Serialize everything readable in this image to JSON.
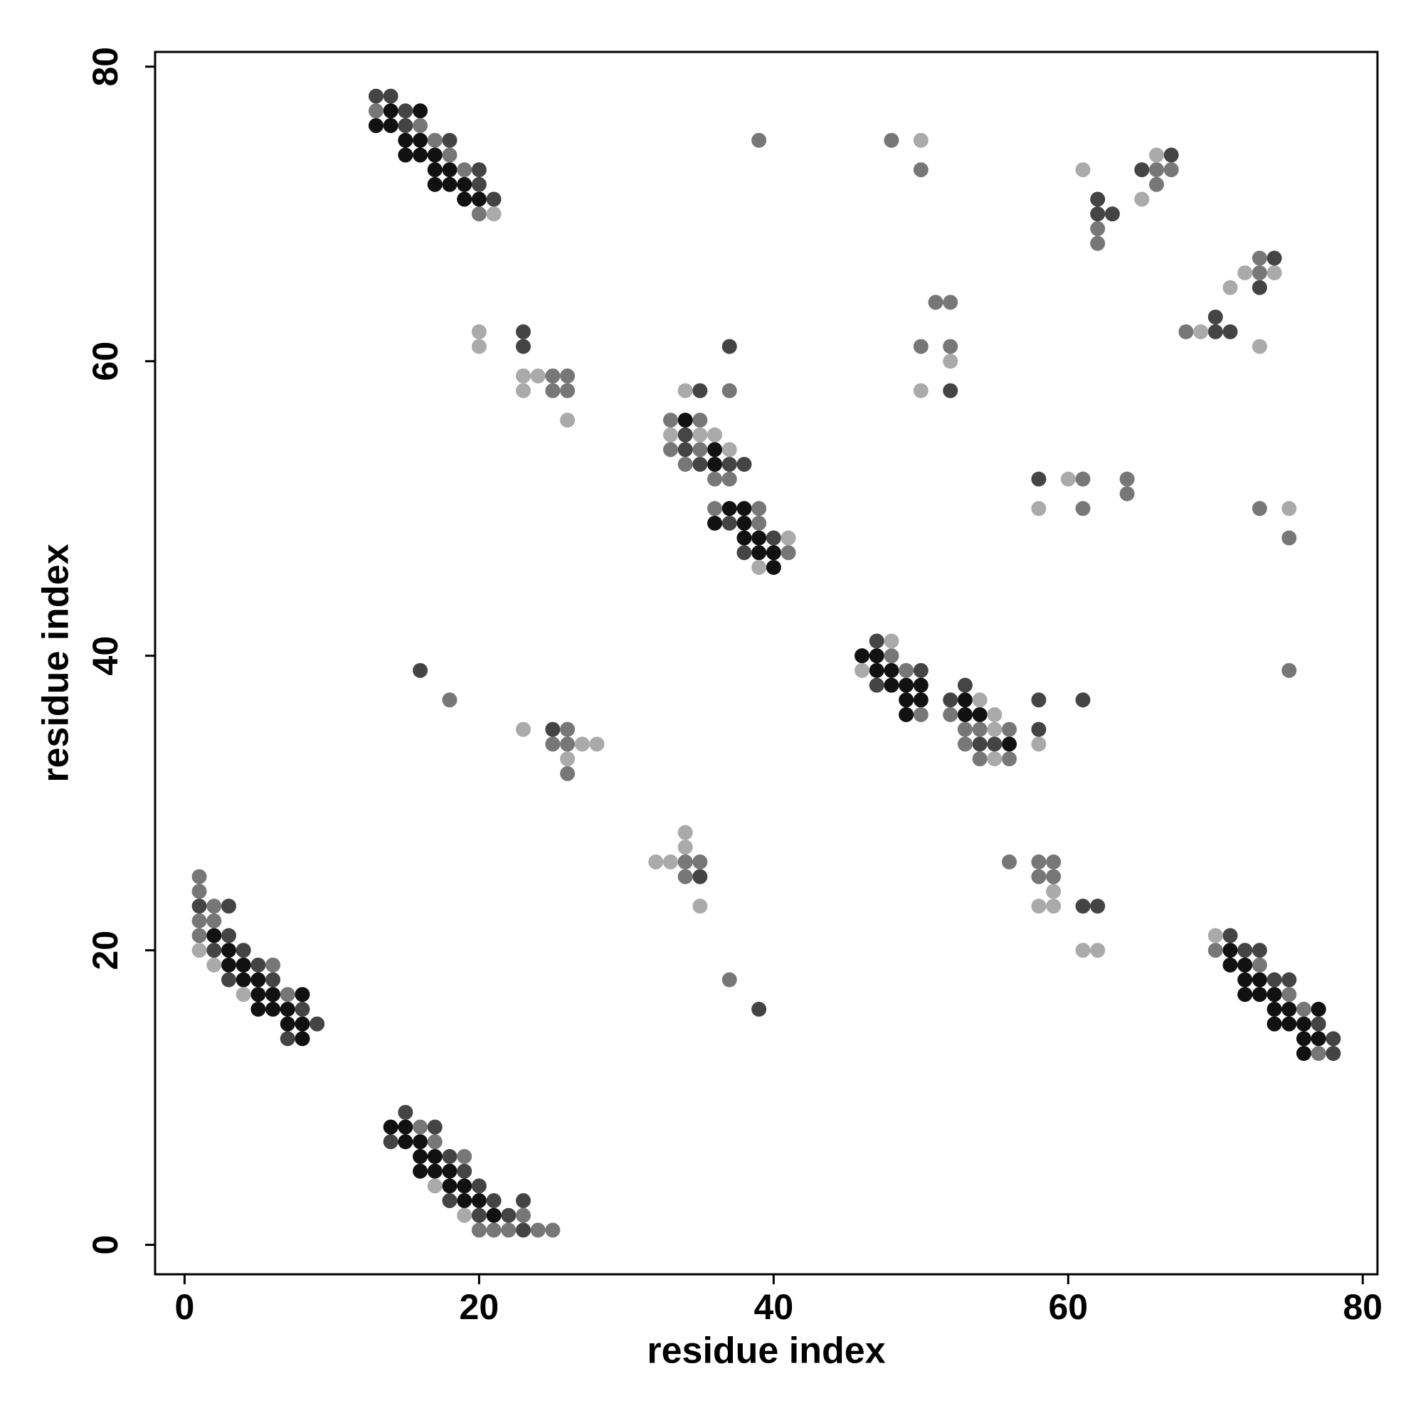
{
  "chart_data": {
    "type": "scatter",
    "xlabel": "residue index",
    "ylabel": "residue index",
    "xlim": [
      -2,
      81
    ],
    "ylim": [
      -2,
      81
    ],
    "xticks": [
      0,
      20,
      40,
      60,
      80
    ],
    "yticks": [
      0,
      20,
      40,
      60,
      80
    ],
    "series": [
      {
        "color": "#111111",
        "x": [
          14,
          16,
          13,
          14,
          15,
          16,
          15,
          16,
          17,
          17,
          18,
          17,
          18,
          19,
          19,
          20,
          34,
          36,
          36,
          37,
          38,
          36,
          38,
          38,
          39,
          39,
          40,
          40,
          46,
          47,
          47,
          48,
          48,
          49,
          50,
          49,
          50,
          53,
          49,
          53,
          54,
          56,
          2,
          3,
          3,
          4,
          4,
          5,
          5,
          6,
          8,
          5,
          6,
          7,
          7,
          8,
          8,
          14,
          15,
          15,
          16,
          16,
          17,
          16,
          17,
          18,
          18,
          19,
          19,
          20,
          21,
          71,
          71,
          72,
          72,
          73,
          72,
          73,
          74,
          74,
          75,
          77,
          74,
          75,
          76,
          76,
          77,
          76
        ],
        "y": [
          77,
          77,
          76,
          76,
          75,
          75,
          74,
          74,
          74,
          73,
          73,
          72,
          72,
          72,
          71,
          71,
          56,
          54,
          53,
          50,
          50,
          49,
          49,
          48,
          48,
          47,
          47,
          46,
          40,
          40,
          39,
          39,
          38,
          38,
          38,
          37,
          37,
          37,
          36,
          36,
          36,
          34,
          21,
          20,
          19,
          19,
          18,
          18,
          17,
          17,
          17,
          16,
          16,
          16,
          15,
          15,
          14,
          8,
          8,
          7,
          7,
          6,
          6,
          5,
          5,
          5,
          4,
          4,
          3,
          3,
          2,
          20,
          19,
          19,
          18,
          18,
          17,
          17,
          17,
          16,
          16,
          16,
          15,
          15,
          15,
          14,
          14,
          13
        ]
      },
      {
        "color": "#444444",
        "x": [
          13,
          14,
          15,
          15,
          18,
          20,
          20,
          21,
          62,
          62,
          63,
          65,
          67,
          74,
          73,
          70,
          70,
          71,
          52,
          23,
          23,
          37,
          35,
          34,
          34,
          35,
          37,
          38,
          37,
          40,
          38,
          58,
          47,
          50,
          47,
          53,
          52,
          58,
          61,
          58,
          54,
          55,
          16,
          25,
          35,
          61,
          62,
          39,
          1,
          3,
          3,
          2,
          4,
          5,
          3,
          6,
          8,
          9,
          7,
          15,
          17,
          14,
          18,
          19,
          20,
          18,
          21,
          23,
          20,
          22,
          23,
          71,
          72,
          73,
          74,
          75,
          77,
          78,
          78
        ],
        "y": [
          78,
          78,
          77,
          76,
          75,
          73,
          72,
          71,
          71,
          70,
          70,
          73,
          74,
          67,
          65,
          63,
          62,
          62,
          58,
          62,
          61,
          61,
          58,
          55,
          54,
          53,
          53,
          53,
          49,
          48,
          47,
          52,
          41,
          39,
          38,
          38,
          37,
          37,
          37,
          35,
          34,
          34,
          39,
          35,
          25,
          23,
          23,
          16,
          23,
          23,
          21,
          20,
          20,
          19,
          18,
          18,
          16,
          15,
          14,
          9,
          8,
          7,
          6,
          5,
          4,
          3,
          3,
          3,
          2,
          2,
          1,
          21,
          20,
          20,
          18,
          18,
          15,
          14,
          13
        ]
      },
      {
        "color": "#777777",
        "x": [
          13,
          16,
          17,
          18,
          19,
          20,
          39,
          48,
          50,
          62,
          62,
          66,
          67,
          66,
          73,
          73,
          68,
          51,
          52,
          50,
          52,
          25,
          26,
          25,
          26,
          37,
          33,
          35,
          33,
          35,
          34,
          36,
          37,
          36,
          39,
          39,
          41,
          61,
          64,
          64,
          61,
          73,
          75,
          75,
          48,
          49,
          50,
          52,
          53,
          54,
          56,
          53,
          54,
          56,
          18,
          26,
          25,
          26,
          26,
          34,
          35,
          34,
          56,
          58,
          59,
          58,
          59,
          37,
          1,
          1,
          2,
          1,
          2,
          1,
          6,
          7,
          16,
          17,
          19,
          23,
          20,
          21,
          22,
          24,
          25,
          70,
          73,
          75,
          76,
          77
        ],
        "y": [
          77,
          76,
          75,
          74,
          73,
          70,
          75,
          75,
          73,
          69,
          68,
          73,
          73,
          72,
          67,
          66,
          62,
          64,
          64,
          61,
          61,
          59,
          59,
          58,
          58,
          58,
          56,
          56,
          54,
          54,
          53,
          52,
          52,
          50,
          50,
          49,
          47,
          52,
          52,
          51,
          50,
          50,
          48,
          39,
          40,
          39,
          36,
          36,
          35,
          35,
          35,
          34,
          33,
          33,
          37,
          35,
          34,
          34,
          32,
          26,
          26,
          25,
          26,
          26,
          26,
          25,
          25,
          18,
          25,
          24,
          23,
          22,
          22,
          21,
          19,
          17,
          8,
          7,
          6,
          2,
          1,
          1,
          1,
          1,
          1,
          20,
          19,
          17,
          16,
          13
        ]
      },
      {
        "color": "#aaaaaa",
        "x": [
          21,
          50,
          61,
          66,
          65,
          72,
          74,
          71,
          69,
          73,
          52,
          50,
          20,
          20,
          23,
          24,
          23,
          26,
          34,
          33,
          35,
          36,
          37,
          39,
          41,
          60,
          58,
          75,
          48,
          46,
          54,
          55,
          55,
          58,
          55,
          23,
          27,
          28,
          26,
          34,
          34,
          32,
          33,
          35,
          59,
          58,
          59,
          61,
          62,
          1,
          2,
          4,
          17,
          19,
          70
        ],
        "y": [
          70,
          75,
          73,
          74,
          71,
          66,
          66,
          65,
          62,
          61,
          60,
          58,
          62,
          61,
          59,
          59,
          58,
          56,
          58,
          55,
          55,
          55,
          54,
          46,
          48,
          52,
          50,
          50,
          41,
          39,
          37,
          36,
          35,
          34,
          33,
          35,
          34,
          34,
          33,
          28,
          27,
          26,
          26,
          23,
          24,
          23,
          23,
          20,
          20,
          20,
          19,
          17,
          4,
          2,
          21
        ]
      }
    ]
  }
}
